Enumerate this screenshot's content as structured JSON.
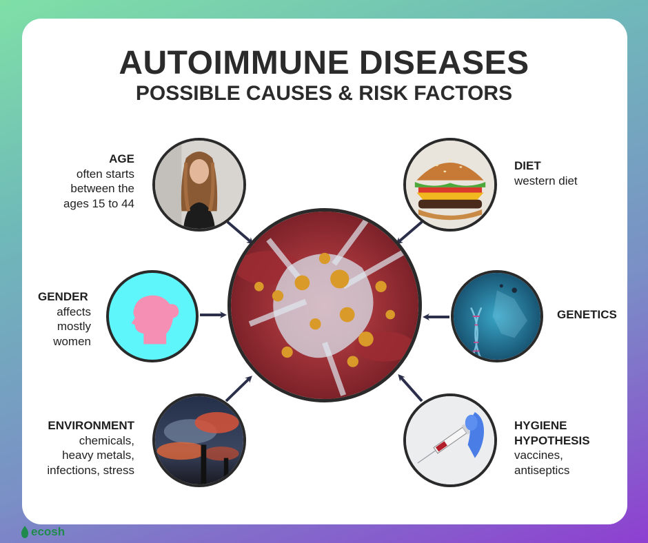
{
  "title": "AUTOIMMUNE DISEASES",
  "subtitle": "POSSIBLE CAUSES & RISK FACTORS",
  "factors": {
    "age": {
      "head": "AGE",
      "body": "often starts\nbetween the\nages 15 to 44",
      "icon": "woman-portrait-photo"
    },
    "diet": {
      "head": "DIET",
      "body": "western diet",
      "icon": "burger-photo"
    },
    "gender": {
      "head": "GENDER",
      "body": "affects\nmostly\nwomen",
      "icon": "woman-silhouette-icon"
    },
    "genetics": {
      "head": "GENETICS",
      "body": "",
      "icon": "dna-photo"
    },
    "environment": {
      "head": "ENVIRONMENT",
      "body": "chemicals,\nheavy metals,\ninfections, stress",
      "icon": "smokestack-pollution-photo"
    },
    "hygiene": {
      "head": "HYGIENE\nHYPOTHESIS",
      "body": "vaccines,\nantiseptics",
      "icon": "syringe-photo"
    }
  },
  "center": {
    "icon": "immune-cell-photo"
  },
  "brand": {
    "name": "ecosh"
  },
  "colors": {
    "arrow": "#2b2f4a",
    "gender_bg": "#5ef6fb",
    "gender_fg": "#f58fb4",
    "brand": "#1f8a4c"
  }
}
